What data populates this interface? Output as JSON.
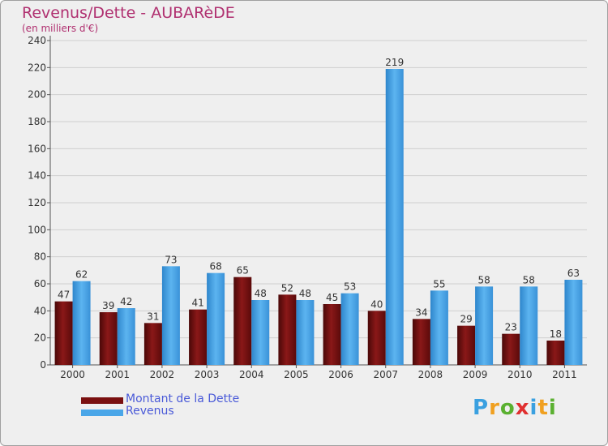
{
  "chart_data": {
    "type": "bar",
    "title": "Revenus/Dette - AUBARèDE",
    "subtitle": "(en milliers d'€)",
    "xlabel": "",
    "ylabel": "",
    "ylim": [
      0,
      240
    ],
    "yticks": [
      0,
      20,
      40,
      60,
      80,
      100,
      120,
      140,
      160,
      180,
      200,
      220,
      240
    ],
    "categories": [
      "2000",
      "2001",
      "2002",
      "2003",
      "2004",
      "2005",
      "2006",
      "2007",
      "2008",
      "2009",
      "2010",
      "2011"
    ],
    "series": [
      {
        "name": "Montant de la Dette",
        "color": "#7a1010",
        "values": [
          47,
          39,
          31,
          41,
          65,
          52,
          45,
          40,
          34,
          29,
          23,
          18
        ]
      },
      {
        "name": "Revenus",
        "color": "#4aa6e8",
        "values": [
          62,
          42,
          73,
          68,
          48,
          48,
          53,
          219,
          55,
          58,
          58,
          63
        ]
      }
    ],
    "legend_position": "bottom-left"
  },
  "brand": {
    "letters": [
      "P",
      "r",
      "o",
      "x",
      "i",
      "t",
      "i"
    ]
  }
}
